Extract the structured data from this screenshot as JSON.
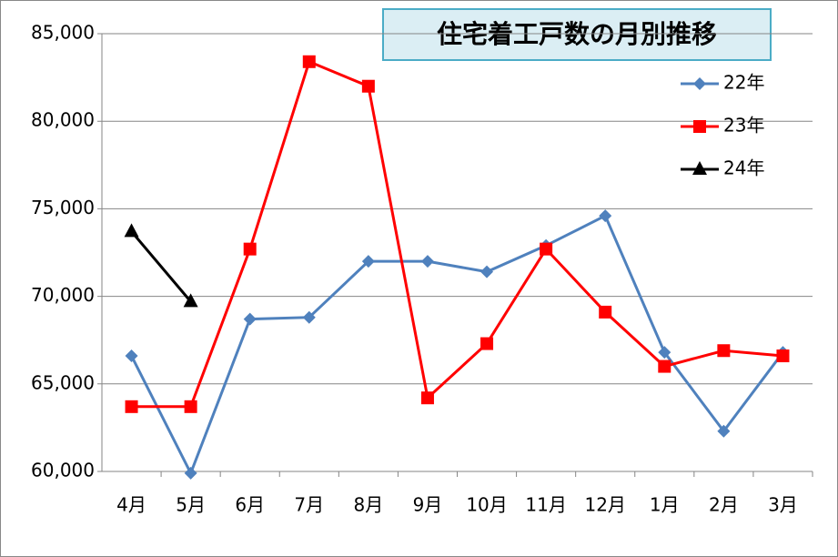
{
  "chart_data": {
    "type": "line",
    "title": "住宅着工戸数の月別推移",
    "categories": [
      "4月",
      "5月",
      "6月",
      "7月",
      "8月",
      "9月",
      "10月",
      "11月",
      "12月",
      "1月",
      "2月",
      "3月"
    ],
    "series": [
      {
        "name": "22年",
        "color": "#4f81bd",
        "marker": "diamond",
        "values": [
          66600,
          59900,
          68700,
          68800,
          72000,
          72000,
          71400,
          72900,
          74600,
          66800,
          62300,
          66800
        ]
      },
      {
        "name": "23年",
        "color": "#ff0000",
        "marker": "square",
        "values": [
          63700,
          63700,
          72700,
          83400,
          82000,
          64200,
          67300,
          72700,
          69100,
          66000,
          66900,
          66600
        ]
      },
      {
        "name": "24年",
        "color": "#000000",
        "marker": "triangle",
        "values": [
          73700,
          69700,
          null,
          null,
          null,
          null,
          null,
          null,
          null,
          null,
          null,
          null
        ]
      }
    ],
    "ylim": [
      60000,
      85000
    ],
    "yticks": [
      {
        "value": 60000,
        "label": "60,000"
      },
      {
        "value": 65000,
        "label": "65,000"
      },
      {
        "value": 70000,
        "label": "70,000"
      },
      {
        "value": 75000,
        "label": "75,000"
      },
      {
        "value": 80000,
        "label": "80,000"
      },
      {
        "value": 85000,
        "label": "85,000"
      }
    ],
    "grid": true,
    "legend": "right"
  }
}
